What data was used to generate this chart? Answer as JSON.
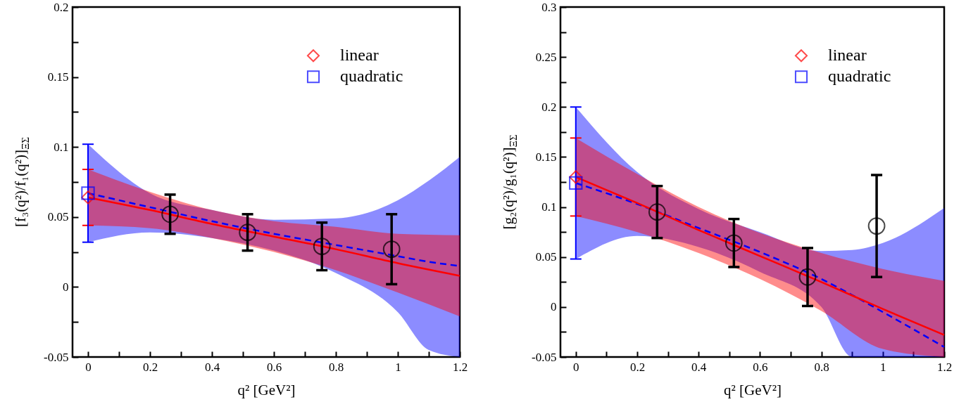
{
  "chart_data": [
    {
      "type": "line",
      "xlabel": "q² [GeV²]",
      "ylabel": "[f₃(q²)/f₁(q²)]$_{ΞΣ}$",
      "xlim": [
        -0.05,
        1.2
      ],
      "ylim": [
        -0.05,
        0.2
      ],
      "xticks": [
        0,
        {
          "value": 0.1,
          "label": null
        },
        0.2,
        {
          "value": 0.3,
          "label": null
        },
        0.4,
        {
          "value": 0.5,
          "label": null
        },
        0.6,
        {
          "value": 0.7,
          "label": null
        },
        0.8,
        {
          "value": 0.9,
          "label": null
        },
        1,
        {
          "value": 1.1,
          "label": null
        },
        1.2
      ],
      "yticks": [
        -0.05,
        {
          "value": -0.025,
          "label": null
        },
        0,
        {
          "value": 0.025,
          "label": null
        },
        0.05,
        {
          "value": 0.075,
          "label": null
        },
        0.1,
        {
          "value": 0.125,
          "label": null
        },
        0.15,
        {
          "value": 0.175,
          "label": null
        },
        0.2
      ],
      "legend": "top right",
      "series": [
        {
          "type": "line",
          "color": "#0000ff",
          "line_style": "dashed",
          "x": [
            0,
            0.2,
            0.4,
            0.6,
            0.8,
            1.0,
            1.1,
            1.2
          ],
          "values": [
            0.067,
            0.057,
            0.047,
            0.038,
            0.03,
            0.022,
            0.018,
            0.015
          ],
          "lower": [
            0.032,
            0.039,
            0.035,
            0.026,
            0.01,
            -0.018,
            -0.045,
            -0.05
          ],
          "upper": [
            0.102,
            0.067,
            0.055,
            0.048,
            0.049,
            0.062,
            0.076,
            0.093
          ]
        },
        {
          "type": "line",
          "color": "#ff0000",
          "line_style": "solid",
          "x": [
            0,
            0.2,
            0.4,
            0.6,
            0.8,
            1.0,
            1.2
          ],
          "values": [
            0.064,
            0.055,
            0.045,
            0.036,
            0.027,
            0.017,
            0.008
          ],
          "lower": [
            0.044,
            0.042,
            0.035,
            0.025,
            0.012,
            -0.004,
            -0.021
          ],
          "upper": [
            0.084,
            0.068,
            0.055,
            0.047,
            0.043,
            0.038,
            0.037
          ]
        },
        {
          "type": "scatter",
          "color": "#000000",
          "marker": "circle",
          "x": [
            0.265,
            0.515,
            0.755,
            0.98
          ],
          "values": [
            0.052,
            0.039,
            0.029,
            0.027
          ],
          "errors": [
            0.014,
            0.013,
            0.017,
            0.025
          ]
        },
        {
          "type": "scatter",
          "name": "linear",
          "color": "#ff0000",
          "marker": "diamond",
          "x": [
            0
          ],
          "values": [
            0.064
          ],
          "errors": [
            0.02
          ]
        },
        {
          "type": "scatter",
          "name": "quadratic",
          "color": "#0000ff",
          "marker": "square",
          "x": [
            0
          ],
          "values": [
            0.067
          ],
          "errors": [
            0.035
          ]
        }
      ]
    },
    {
      "type": "line",
      "xlabel": "q² [GeV²]",
      "ylabel": "[g₂(q²)/g₁(q²)]$_{ΞΣ}$",
      "xlim": [
        -0.05,
        1.2
      ],
      "ylim": [
        -0.05,
        0.3
      ],
      "xticks": [
        0,
        {
          "value": 0.1,
          "label": null
        },
        0.2,
        {
          "value": 0.3,
          "label": null
        },
        0.4,
        {
          "value": 0.5,
          "label": null
        },
        0.6,
        {
          "value": 0.7,
          "label": null
        },
        0.8,
        {
          "value": 0.9,
          "label": null
        },
        1,
        {
          "value": 1.1,
          "label": null
        },
        1.2
      ],
      "yticks": [
        -0.05,
        {
          "value": -0.025,
          "label": null
        },
        0,
        {
          "value": 0.025,
          "label": null
        },
        0.05,
        {
          "value": 0.075,
          "label": null
        },
        0.1,
        {
          "value": 0.125,
          "label": null
        },
        0.15,
        {
          "value": 0.175,
          "label": null
        },
        0.2,
        {
          "value": 0.225,
          "label": null
        },
        0.25,
        {
          "value": 0.275,
          "label": null
        },
        0.3
      ],
      "legend": "top right",
      "series": [
        {
          "type": "line",
          "color": "#0000ff",
          "line_style": "dashed",
          "x": [
            0,
            0.2,
            0.4,
            0.6,
            0.8,
            0.9,
            1.0,
            1.2
          ],
          "values": [
            0.124,
            0.103,
            0.079,
            0.055,
            0.028,
            0.012,
            -0.005,
            -0.04
          ],
          "lower": [
            0.048,
            0.071,
            0.06,
            0.035,
            0.0,
            -0.05,
            -0.05,
            -0.05
          ],
          "upper": [
            0.2,
            0.135,
            0.098,
            0.075,
            0.056,
            0.057,
            0.064,
            0.099
          ]
        },
        {
          "type": "line",
          "color": "#ff0000",
          "line_style": "solid",
          "x": [
            0,
            0.2,
            0.4,
            0.6,
            0.8,
            1.0,
            1.2
          ],
          "values": [
            0.13,
            0.104,
            0.077,
            0.051,
            0.025,
            -0.002,
            -0.028
          ],
          "lower": [
            0.091,
            0.075,
            0.054,
            0.028,
            -0.004,
            -0.042,
            -0.05
          ],
          "upper": [
            0.169,
            0.133,
            0.1,
            0.074,
            0.054,
            0.038,
            0.026
          ]
        },
        {
          "type": "scatter",
          "color": "#000000",
          "marker": "circle",
          "x": [
            0.265,
            0.515,
            0.755,
            0.98
          ],
          "values": [
            0.095,
            0.064,
            0.03,
            0.081
          ],
          "errors": [
            0.026,
            0.024,
            0.029,
            0.051
          ]
        },
        {
          "type": "scatter",
          "name": "linear",
          "color": "#ff0000",
          "marker": "diamond",
          "x": [
            0
          ],
          "values": [
            0.13
          ],
          "errors": [
            0.039
          ]
        },
        {
          "type": "scatter",
          "name": "quadratic",
          "color": "#0000ff",
          "marker": "square",
          "x": [
            0
          ],
          "values": [
            0.124
          ],
          "errors": [
            0.076
          ]
        }
      ]
    }
  ]
}
